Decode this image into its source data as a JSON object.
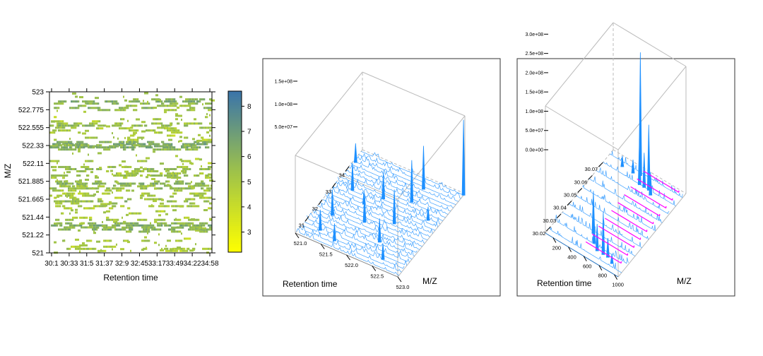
{
  "chart_data": [
    {
      "type": "heatmap",
      "panel": "left",
      "xlabel": "Retention time",
      "ylabel": "M/Z",
      "x_ticks": [
        "30:1",
        "30:33",
        "31:5",
        "31:37",
        "32:9",
        "32:45",
        "33:17",
        "33:49",
        "34:22",
        "34:58"
      ],
      "y_ticks": [
        "521",
        "521.22",
        "521.44",
        "521.665",
        "521.885",
        "522.11",
        "522.33",
        "522.555",
        "522.775",
        "523"
      ],
      "ylim": [
        521,
        523
      ],
      "colorbar": {
        "ticks": [
          "3",
          "4",
          "5",
          "6",
          "7",
          "8"
        ],
        "range": [
          2.2,
          8.6
        ],
        "low_color": "#ffff00",
        "mid_color": "#9ec24a",
        "high_color": "#3a74aa"
      },
      "bands": [
        {
          "mz": 522.88,
          "intensity": 6.3,
          "density": 0.55
        },
        {
          "mz": 522.8,
          "intensity": 6.0,
          "density": 0.35
        },
        {
          "mz": 522.66,
          "intensity": 5.2,
          "density": 0.12
        },
        {
          "mz": 522.58,
          "intensity": 5.8,
          "density": 0.4
        },
        {
          "mz": 522.52,
          "intensity": 5.3,
          "density": 0.18
        },
        {
          "mz": 522.43,
          "intensity": 5.0,
          "density": 0.1
        },
        {
          "mz": 522.35,
          "intensity": 6.6,
          "density": 0.85
        },
        {
          "mz": 522.31,
          "intensity": 6.4,
          "density": 0.8
        },
        {
          "mz": 522.14,
          "intensity": 5.2,
          "density": 0.12
        },
        {
          "mz": 522.04,
          "intensity": 5.8,
          "density": 0.4
        },
        {
          "mz": 521.96,
          "intensity": 5.5,
          "density": 0.3
        },
        {
          "mz": 521.86,
          "intensity": 6.2,
          "density": 0.6
        },
        {
          "mz": 521.8,
          "intensity": 5.6,
          "density": 0.35
        },
        {
          "mz": 521.71,
          "intensity": 5.3,
          "density": 0.2
        },
        {
          "mz": 521.64,
          "intensity": 5.8,
          "density": 0.45
        },
        {
          "mz": 521.58,
          "intensity": 5.2,
          "density": 0.18
        },
        {
          "mz": 521.49,
          "intensity": 5.1,
          "density": 0.14
        },
        {
          "mz": 521.41,
          "intensity": 5.3,
          "density": 0.2
        },
        {
          "mz": 521.34,
          "intensity": 6.4,
          "density": 0.85
        },
        {
          "mz": 521.29,
          "intensity": 6.1,
          "density": 0.6
        },
        {
          "mz": 521.15,
          "intensity": 5.0,
          "density": 0.1
        },
        {
          "mz": 521.05,
          "intensity": 5.1,
          "density": 0.14
        }
      ]
    },
    {
      "type": "line",
      "panel": "middle",
      "style": "3d-waterfall",
      "xlabel": "M/Z",
      "ylabel": "Retention time",
      "x_ticks": [
        "521.0",
        "521.5",
        "522.0",
        "522.5",
        "523.0"
      ],
      "y_ticks": [
        "31",
        "32",
        "33",
        "34"
      ],
      "z_ticks": [
        "5.0e+07",
        "1.0e+08",
        "1.5e+08"
      ],
      "xlim": [
        521.0,
        523.0
      ],
      "ylim": [
        30.0,
        35.0
      ],
      "zlim": [
        0,
        170000000
      ],
      "color": "#1e90ff",
      "peaks": [
        {
          "mz": 523.0,
          "rt": 34.9,
          "height": 165000000
        },
        {
          "mz": 522.35,
          "rt": 34.4,
          "height": 95000000
        },
        {
          "mz": 522.33,
          "rt": 33.6,
          "height": 92000000
        },
        {
          "mz": 522.33,
          "rt": 32.3,
          "height": 75000000
        },
        {
          "mz": 522.33,
          "rt": 31.2,
          "height": 52000000
        },
        {
          "mz": 521.88,
          "rt": 33.2,
          "height": 58000000
        },
        {
          "mz": 521.88,
          "rt": 31.8,
          "height": 62000000
        },
        {
          "mz": 521.33,
          "rt": 33.0,
          "height": 60000000
        },
        {
          "mz": 521.33,
          "rt": 31.5,
          "height": 55000000
        },
        {
          "mz": 521.33,
          "rt": 30.6,
          "height": 45000000
        },
        {
          "mz": 521.05,
          "rt": 34.3,
          "height": 42000000
        },
        {
          "mz": 522.78,
          "rt": 33.1,
          "height": 30000000
        },
        {
          "mz": 522.58,
          "rt": 30.5,
          "height": 35000000
        },
        {
          "mz": 521.66,
          "rt": 30.4,
          "height": 38000000
        },
        {
          "mz": 521.66,
          "rt": 32.6,
          "height": 28000000
        }
      ]
    },
    {
      "type": "line",
      "panel": "right",
      "style": "3d-waterfall",
      "xlabel": "M/Z",
      "ylabel": "Retention time",
      "x_ticks": [
        "200",
        "400",
        "600",
        "800",
        "1000"
      ],
      "y_ticks": [
        "30.02",
        "30.03",
        "30.04",
        "30.05",
        "30.06",
        "30.07"
      ],
      "z_ticks": [
        "0.0e+00",
        "5.0e+07",
        "1.0e+08",
        "1.5e+08",
        "2.0e+08",
        "2.5e+08",
        "3.0e+08"
      ],
      "xlim": [
        100,
        1050
      ],
      "ylim": [
        30.015,
        30.08
      ],
      "zlim": [
        0,
        330000000
      ],
      "spectrum_color": "#1e90ff",
      "highlight_color": "#ff00ff",
      "highlight_mz": [
        521.0,
        523.0
      ],
      "peaks": [
        {
          "mz": 522.0,
          "rt": 30.075,
          "height": 320000000
        },
        {
          "mz": 580.0,
          "rt": 30.07,
          "height": 120000000
        },
        {
          "mz": 640.0,
          "rt": 30.07,
          "height": 90000000
        },
        {
          "mz": 700.0,
          "rt": 30.07,
          "height": 170000000
        },
        {
          "mz": 750.0,
          "rt": 30.068,
          "height": 60000000
        },
        {
          "mz": 522.0,
          "rt": 30.03,
          "height": 110000000
        },
        {
          "mz": 600.0,
          "rt": 30.025,
          "height": 55000000
        },
        {
          "mz": 680.0,
          "rt": 30.022,
          "height": 70000000
        },
        {
          "mz": 760.0,
          "rt": 30.022,
          "height": 110000000
        },
        {
          "mz": 820.0,
          "rt": 30.022,
          "height": 50000000
        },
        {
          "mz": 900.0,
          "rt": 30.02,
          "height": 25000000
        },
        {
          "mz": 300.0,
          "rt": 30.074,
          "height": 28000000
        },
        {
          "mz": 440.0,
          "rt": 30.074,
          "height": 35000000
        }
      ]
    }
  ]
}
